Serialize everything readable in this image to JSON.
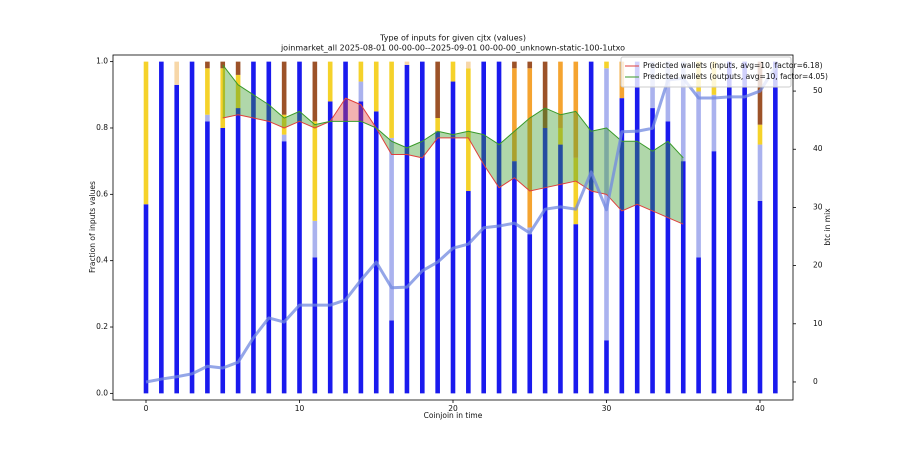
{
  "chart_data": {
    "type": "bar",
    "stacked": true,
    "title": "Type of inputs for given cjtx (values)",
    "subtitle": "joinmarket_all 2025-08-01 00-00-00--2025-09-01 00-00-00_unknown-static-100-1utxo",
    "x_label": "Coinjoin in time",
    "y_label": "Fraction of inputs values",
    "y2_label": "btc in mix",
    "y2_color": "#4c6ce0",
    "x": [
      0,
      1,
      2,
      3,
      4,
      5,
      6,
      7,
      8,
      9,
      10,
      11,
      12,
      13,
      14,
      15,
      16,
      17,
      18,
      19,
      20,
      21,
      22,
      23,
      24,
      25,
      26,
      27,
      28,
      29,
      30,
      31,
      32,
      33,
      34,
      35,
      36,
      37,
      38,
      39,
      40,
      41
    ],
    "xlim": [
      -2.15,
      42.15
    ],
    "xticks": [
      0,
      10,
      20,
      30,
      40
    ],
    "ylim": [
      -0.02,
      1.02
    ],
    "yticks": [
      {
        "value": 0,
        "label": "0.0"
      },
      0.2,
      0.4,
      0.6,
      0.8,
      {
        "value": 1,
        "label": "1.0"
      }
    ],
    "y2lim": [
      -3.1,
      56.2
    ],
    "y2ticks": [
      0,
      10,
      20,
      30,
      40,
      50
    ],
    "legend": "upper right",
    "series": [
      {
        "type": "bar",
        "color": "#1a1aee",
        "values": [
          0.57,
          1,
          0.93,
          1,
          0.82,
          0.8,
          0.86,
          1,
          1,
          0.76,
          1,
          0.41,
          0.88,
          1,
          0.88,
          0.85,
          0.22,
          0.99,
          1,
          0.79,
          0.94,
          0.61,
          1,
          1,
          0.7,
          0.48,
          0.8,
          0.75,
          0.51,
          1,
          0.16,
          0.89,
          1,
          0.86,
          0.82,
          0.7,
          0.41,
          0.73,
          1,
          1,
          0.58,
          1
        ]
      },
      {
        "type": "bar",
        "color": "#aab2ee",
        "values": [
          0,
          0,
          0,
          0,
          0.02,
          0,
          0,
          0,
          0,
          0.02,
          0,
          0.11,
          0,
          0,
          0.06,
          0,
          0.55,
          0,
          0,
          0,
          0,
          0,
          0,
          0,
          0,
          0.02,
          0,
          0,
          0,
          0,
          0.82,
          0,
          0,
          0.14,
          0.18,
          0.3,
          0.5,
          0.17,
          0,
          0,
          0.17,
          0
        ]
      },
      {
        "type": "bar",
        "color": "#f5d22a",
        "values": [
          0.43,
          0,
          0,
          0,
          0.14,
          0.18,
          0.1,
          0,
          0,
          0.06,
          0,
          0.3,
          0.12,
          0,
          0.06,
          0.15,
          0.23,
          0,
          0,
          0.04,
          0.06,
          0.37,
          0,
          0,
          0,
          0,
          0,
          0.05,
          0.2,
          0,
          0.02,
          0,
          0,
          0,
          0,
          0,
          0.09,
          0.1,
          0,
          0,
          0.06,
          0
        ]
      },
      {
        "type": "bar",
        "color": "#f5a430",
        "values": [
          0,
          0,
          0,
          0,
          0,
          0,
          0,
          0,
          0,
          0,
          0,
          0,
          0,
          0,
          0,
          0,
          0,
          0,
          0,
          0,
          0,
          0,
          0,
          0,
          0.28,
          0.48,
          0,
          0.2,
          0.29,
          0,
          0,
          0.11,
          0,
          0,
          0,
          0,
          0,
          0,
          0,
          0,
          0,
          0
        ]
      },
      {
        "type": "bar",
        "color": "#9c5228",
        "values": [
          0,
          0,
          0,
          0,
          0.02,
          0.02,
          0.04,
          0,
          0,
          0.16,
          0,
          0.18,
          0,
          0,
          0,
          0,
          0,
          0,
          0,
          0.17,
          0,
          0,
          0,
          0,
          0.02,
          0.02,
          0.2,
          0,
          0,
          0,
          0,
          0,
          0,
          0,
          0,
          0,
          0,
          0,
          0,
          0,
          0.19,
          0
        ]
      },
      {
        "type": "bar",
        "color": "#f7d7a8",
        "values": [
          0,
          0,
          0.07,
          0,
          0,
          0,
          0,
          0,
          0,
          0,
          0,
          0,
          0,
          0,
          0,
          0,
          0,
          0.01,
          0,
          0,
          0,
          0.02,
          0,
          0,
          0,
          0,
          0,
          0,
          0,
          0,
          0,
          0,
          0,
          0,
          0,
          0,
          0,
          0,
          0,
          0,
          0,
          0
        ]
      },
      {
        "type": "line",
        "name": "Predicted wallets (inputs, avg=10, factor=6.18)",
        "color": "#e0403c",
        "values": [
          null,
          null,
          null,
          null,
          null,
          0.83,
          0.84,
          0.83,
          0.82,
          0.8,
          0.82,
          0.8,
          0.82,
          0.89,
          0.87,
          0.8,
          0.72,
          0.72,
          0.71,
          0.77,
          0.77,
          0.77,
          0.69,
          0.62,
          0.65,
          0.61,
          0.62,
          0.63,
          0.64,
          0.61,
          0.6,
          0.55,
          0.57,
          0.55,
          0.53,
          0.51,
          null,
          null,
          null,
          null,
          null,
          null
        ]
      },
      {
        "type": "line",
        "name": "Predicted wallets (outputs, avg=10, factor=4.05)",
        "color": "#3a9a2a",
        "values": [
          null,
          null,
          null,
          null,
          null,
          0.99,
          0.93,
          0.9,
          0.87,
          0.83,
          0.85,
          0.81,
          0.82,
          0.82,
          0.82,
          0.8,
          0.76,
          0.74,
          0.76,
          0.79,
          0.78,
          0.79,
          0.78,
          0.75,
          0.79,
          0.83,
          0.86,
          0.84,
          0.85,
          0.79,
          0.8,
          0.76,
          0.76,
          0.73,
          0.76,
          0.71,
          null,
          null,
          null,
          null,
          null,
          null
        ]
      },
      {
        "type": "line",
        "axis": "y2",
        "color": "#7088e0",
        "values": [
          0,
          0.5,
          0.9,
          1.4,
          2.7,
          2.4,
          3.4,
          7.6,
          11,
          10.3,
          13.2,
          13.2,
          13.2,
          14.1,
          17.5,
          20.6,
          16.2,
          16.3,
          19.1,
          20.6,
          23,
          23.7,
          26.5,
          26.8,
          27.3,
          25.6,
          29.7,
          30.1,
          29.7,
          36.1,
          29.6,
          43,
          43.1,
          43.6,
          51.9,
          52.2,
          48.8,
          48.8,
          49,
          49,
          50,
          54.1
        ]
      }
    ]
  }
}
